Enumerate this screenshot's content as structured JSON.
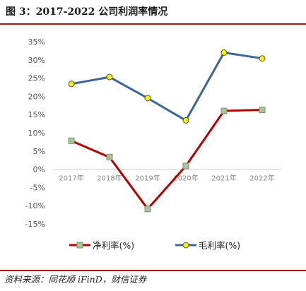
{
  "figure_title": "图 3：2017-2022 公司利润率情况",
  "source_note": "资料来源：同花顺 iFinD，财信证券",
  "colors": {
    "gross_line": "#3d6596",
    "net_line": "#b40000",
    "gross_marker": "#f3f100",
    "net_marker": "#a8c49a",
    "title_rule": "#9a1a1a"
  },
  "chart_data": {
    "type": "line",
    "categories": [
      "2017年",
      "2018年",
      "2019年",
      "2020年",
      "2021年",
      "2022年"
    ],
    "series": [
      {
        "name": "净利率(%)",
        "values": [
          7.8,
          3.3,
          -10.9,
          0.9,
          16.0,
          16.3
        ],
        "marker": "square"
      },
      {
        "name": "毛利率(%)",
        "values": [
          23.4,
          25.3,
          19.5,
          13.4,
          32.0,
          30.4
        ],
        "marker": "circle"
      }
    ],
    "ylim": [
      -15,
      35
    ],
    "yticks": [
      -15,
      -10,
      -5,
      0,
      5,
      10,
      15,
      20,
      25,
      30,
      35
    ],
    "ytick_labels": [
      "-15%",
      "-10%",
      "-5%",
      "0%",
      "5%",
      "10%",
      "15%",
      "20%",
      "25%",
      "30%",
      "35%"
    ],
    "grid": false,
    "legend_position": "bottom"
  }
}
